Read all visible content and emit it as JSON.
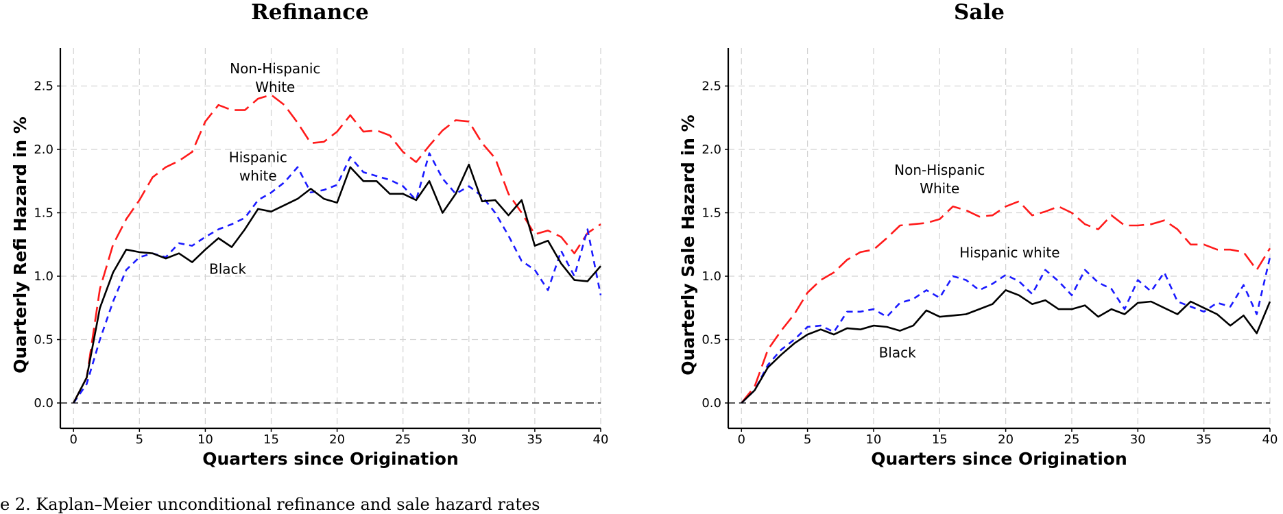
{
  "caption": "e 2. Kaplan–Meier unconditional refinance and sale hazard rates",
  "chart_data": [
    {
      "type": "line",
      "title": "Refinance",
      "xlabel": "Quarters since Origination",
      "ylabel": "Quarterly Refi Hazard in %",
      "xlim": [
        -1,
        40
      ],
      "ylim": [
        -0.2,
        2.8
      ],
      "xticks": [
        0,
        5,
        10,
        15,
        20,
        25,
        30,
        35,
        40
      ],
      "yticks": [
        0.0,
        0.5,
        1.0,
        1.5,
        2.0,
        2.5
      ],
      "ytick_labels": [
        "0.0",
        "0.5",
        "1.0",
        "1.5",
        "2.0",
        "2.5"
      ],
      "grid": true,
      "reference_line": 0,
      "x": [
        0,
        1,
        2,
        3,
        4,
        5,
        6,
        7,
        8,
        9,
        10,
        11,
        12,
        13,
        14,
        15,
        16,
        17,
        18,
        19,
        20,
        21,
        22,
        23,
        24,
        25,
        26,
        27,
        28,
        29,
        30,
        31,
        32,
        33,
        34,
        35,
        36,
        37,
        38,
        39,
        40
      ],
      "series": [
        {
          "name": "Non-Hispanic White",
          "color": "#ff1a1a",
          "dash": "long",
          "values": [
            0.0,
            0.2,
            0.9,
            1.25,
            1.45,
            1.6,
            1.78,
            1.86,
            1.91,
            1.98,
            2.22,
            2.35,
            2.31,
            2.31,
            2.4,
            2.43,
            2.35,
            2.21,
            2.05,
            2.06,
            2.14,
            2.27,
            2.14,
            2.15,
            2.11,
            1.98,
            1.9,
            2.03,
            2.15,
            2.23,
            2.22,
            2.05,
            1.93,
            1.65,
            1.5,
            1.33,
            1.36,
            1.31,
            1.18,
            1.34,
            1.41
          ]
        },
        {
          "name": "Hispanic white",
          "color": "#1a1aff",
          "dash": "short",
          "values": [
            0.0,
            0.15,
            0.5,
            0.8,
            1.05,
            1.15,
            1.18,
            1.15,
            1.26,
            1.24,
            1.31,
            1.37,
            1.41,
            1.46,
            1.6,
            1.66,
            1.74,
            1.86,
            1.66,
            1.68,
            1.72,
            1.94,
            1.82,
            1.79,
            1.76,
            1.71,
            1.6,
            1.97,
            1.77,
            1.65,
            1.71,
            1.63,
            1.5,
            1.32,
            1.12,
            1.05,
            0.89,
            1.2,
            1.0,
            1.37,
            0.85
          ]
        },
        {
          "name": "Black",
          "color": "#000000",
          "dash": "solid",
          "values": [
            0.0,
            0.2,
            0.75,
            1.03,
            1.21,
            1.19,
            1.18,
            1.14,
            1.18,
            1.11,
            1.21,
            1.3,
            1.23,
            1.37,
            1.53,
            1.51,
            1.56,
            1.61,
            1.69,
            1.61,
            1.58,
            1.86,
            1.75,
            1.75,
            1.65,
            1.65,
            1.6,
            1.75,
            1.5,
            1.65,
            1.88,
            1.59,
            1.6,
            1.48,
            1.6,
            1.24,
            1.28,
            1.1,
            0.97,
            0.96,
            1.08
          ]
        }
      ],
      "annotations": [
        {
          "lines": [
            "Non-Hispanic",
            "White"
          ],
          "x": 15.3,
          "y": 2.6
        },
        {
          "lines": [
            "Hispanic",
            "white"
          ],
          "x": 14.0,
          "y": 1.9
        },
        {
          "lines": [
            "Black"
          ],
          "x": 11.7,
          "y": 1.02
        }
      ]
    },
    {
      "type": "line",
      "title": "Sale",
      "xlabel": "Quarters since Origination",
      "ylabel": "Quarterly Sale Hazard in %",
      "xlim": [
        -1,
        40
      ],
      "ylim": [
        -0.2,
        2.8
      ],
      "xticks": [
        0,
        5,
        10,
        15,
        20,
        25,
        30,
        35,
        40
      ],
      "yticks": [
        0.0,
        0.5,
        1.0,
        1.5,
        2.0,
        2.5
      ],
      "ytick_labels": [
        "0.0",
        "0.5",
        "1.0",
        "1.5",
        "2.0",
        "2.5"
      ],
      "grid": true,
      "reference_line": 0,
      "x": [
        0,
        1,
        2,
        3,
        4,
        5,
        6,
        7,
        8,
        9,
        10,
        11,
        12,
        13,
        14,
        15,
        16,
        17,
        18,
        19,
        20,
        21,
        22,
        23,
        24,
        25,
        26,
        27,
        28,
        29,
        30,
        31,
        32,
        33,
        34,
        35,
        36,
        37,
        38,
        39,
        40
      ],
      "series": [
        {
          "name": "Non-Hispanic White",
          "color": "#ff1a1a",
          "dash": "long",
          "values": [
            0.0,
            0.13,
            0.42,
            0.57,
            0.7,
            0.87,
            0.97,
            1.03,
            1.13,
            1.19,
            1.21,
            1.3,
            1.4,
            1.41,
            1.42,
            1.45,
            1.55,
            1.52,
            1.47,
            1.48,
            1.55,
            1.59,
            1.48,
            1.51,
            1.55,
            1.5,
            1.41,
            1.37,
            1.48,
            1.4,
            1.4,
            1.41,
            1.44,
            1.37,
            1.25,
            1.25,
            1.21,
            1.21,
            1.19,
            1.05,
            1.22
          ]
        },
        {
          "name": "Hispanic white",
          "color": "#1a1aff",
          "dash": "short",
          "values": [
            0.0,
            0.1,
            0.3,
            0.42,
            0.5,
            0.6,
            0.61,
            0.56,
            0.72,
            0.72,
            0.74,
            0.68,
            0.79,
            0.82,
            0.89,
            0.83,
            1.0,
            0.97,
            0.89,
            0.94,
            1.01,
            0.96,
            0.86,
            1.05,
            0.96,
            0.85,
            1.05,
            0.95,
            0.9,
            0.74,
            0.97,
            0.88,
            1.03,
            0.8,
            0.76,
            0.72,
            0.79,
            0.76,
            0.93,
            0.7,
            1.15
          ]
        },
        {
          "name": "Black",
          "color": "#000000",
          "dash": "solid",
          "values": [
            0.0,
            0.1,
            0.28,
            0.38,
            0.47,
            0.54,
            0.58,
            0.54,
            0.59,
            0.58,
            0.61,
            0.6,
            0.57,
            0.61,
            0.73,
            0.68,
            0.69,
            0.7,
            0.74,
            0.78,
            0.89,
            0.85,
            0.78,
            0.81,
            0.74,
            0.74,
            0.77,
            0.68,
            0.74,
            0.7,
            0.79,
            0.8,
            0.75,
            0.7,
            0.8,
            0.75,
            0.7,
            0.61,
            0.69,
            0.55,
            0.8
          ]
        }
      ],
      "annotations": [
        {
          "lines": [
            "Non-Hispanic",
            "White"
          ],
          "x": 15.0,
          "y": 1.8
        },
        {
          "lines": [
            "Hispanic white"
          ],
          "x": 20.3,
          "y": 1.15
        },
        {
          "lines": [
            "Black"
          ],
          "x": 11.8,
          "y": 0.36
        }
      ]
    }
  ]
}
